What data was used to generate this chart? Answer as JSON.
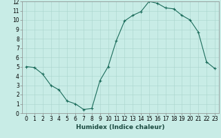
{
  "x": [
    0,
    1,
    2,
    3,
    4,
    5,
    6,
    7,
    8,
    9,
    10,
    11,
    12,
    13,
    14,
    15,
    16,
    17,
    18,
    19,
    20,
    21,
    22,
    23
  ],
  "y": [
    5.0,
    4.9,
    4.2,
    3.0,
    2.5,
    1.3,
    1.0,
    0.4,
    0.5,
    3.5,
    5.0,
    7.8,
    9.9,
    10.5,
    10.9,
    12.0,
    11.8,
    11.3,
    11.2,
    10.5,
    10.0,
    8.7,
    5.5,
    4.8
  ],
  "line_color": "#1a6b5a",
  "marker": "+",
  "marker_size": 3,
  "marker_linewidth": 0.8,
  "line_width": 0.8,
  "background_color": "#c8ece6",
  "grid_color": "#a8d4cc",
  "xlabel": "Humidex (Indice chaleur)",
  "xlim": [
    -0.5,
    23.5
  ],
  "ylim": [
    0,
    12
  ],
  "yticks": [
    0,
    1,
    2,
    3,
    4,
    5,
    6,
    7,
    8,
    9,
    10,
    11,
    12
  ],
  "xticks": [
    0,
    1,
    2,
    3,
    4,
    5,
    6,
    7,
    8,
    9,
    10,
    11,
    12,
    13,
    14,
    15,
    16,
    17,
    18,
    19,
    20,
    21,
    22,
    23
  ],
  "xlabel_fontsize": 6.5,
  "tick_fontsize": 5.5,
  "fig_bg_color": "#c8ece6"
}
